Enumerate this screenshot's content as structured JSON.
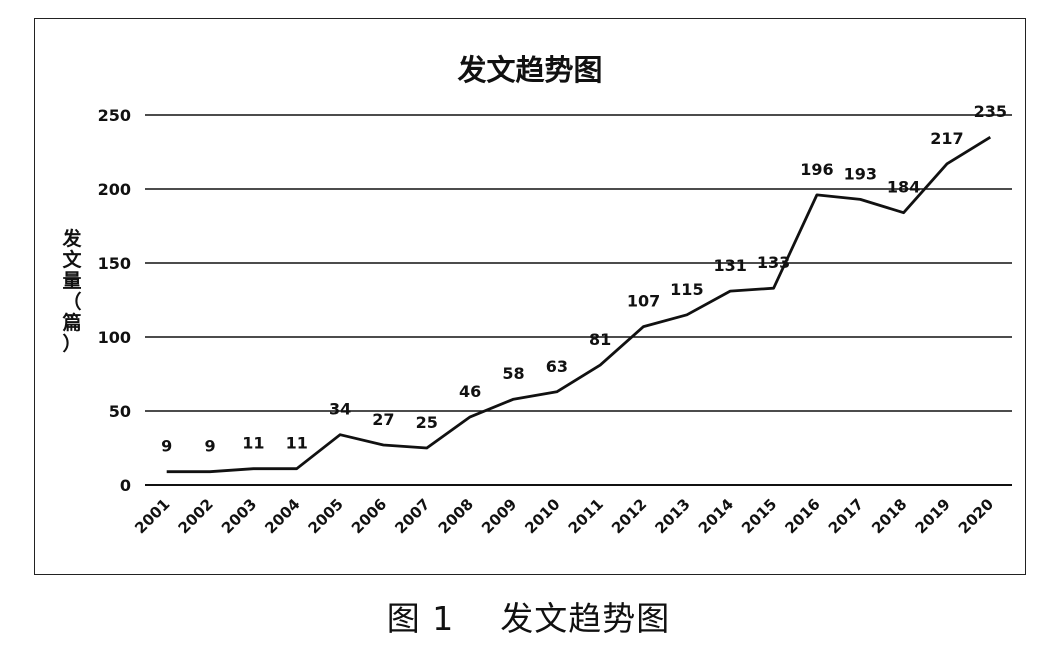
{
  "caption": "图 1    发文趋势图",
  "chart_data": {
    "type": "line",
    "title": "发文趋势图",
    "ylabel": "发文量（篇）",
    "xlabel": "",
    "ylim": [
      0,
      250
    ],
    "yticks": [
      "0",
      "50",
      "100",
      "150",
      "200",
      "250"
    ],
    "grid": true,
    "categories": [
      "2001",
      "2002",
      "2003",
      "2004",
      "2005",
      "2006",
      "2007",
      "2008",
      "2009",
      "2010",
      "2011",
      "2012",
      "2013",
      "2014",
      "2015",
      "2016",
      "2017",
      "2018",
      "2019",
      "2020"
    ],
    "values": [
      9,
      9,
      11,
      11,
      34,
      27,
      25,
      46,
      58,
      63,
      81,
      107,
      115,
      131,
      133,
      196,
      193,
      184,
      217,
      235
    ],
    "line_color": "#111111"
  }
}
